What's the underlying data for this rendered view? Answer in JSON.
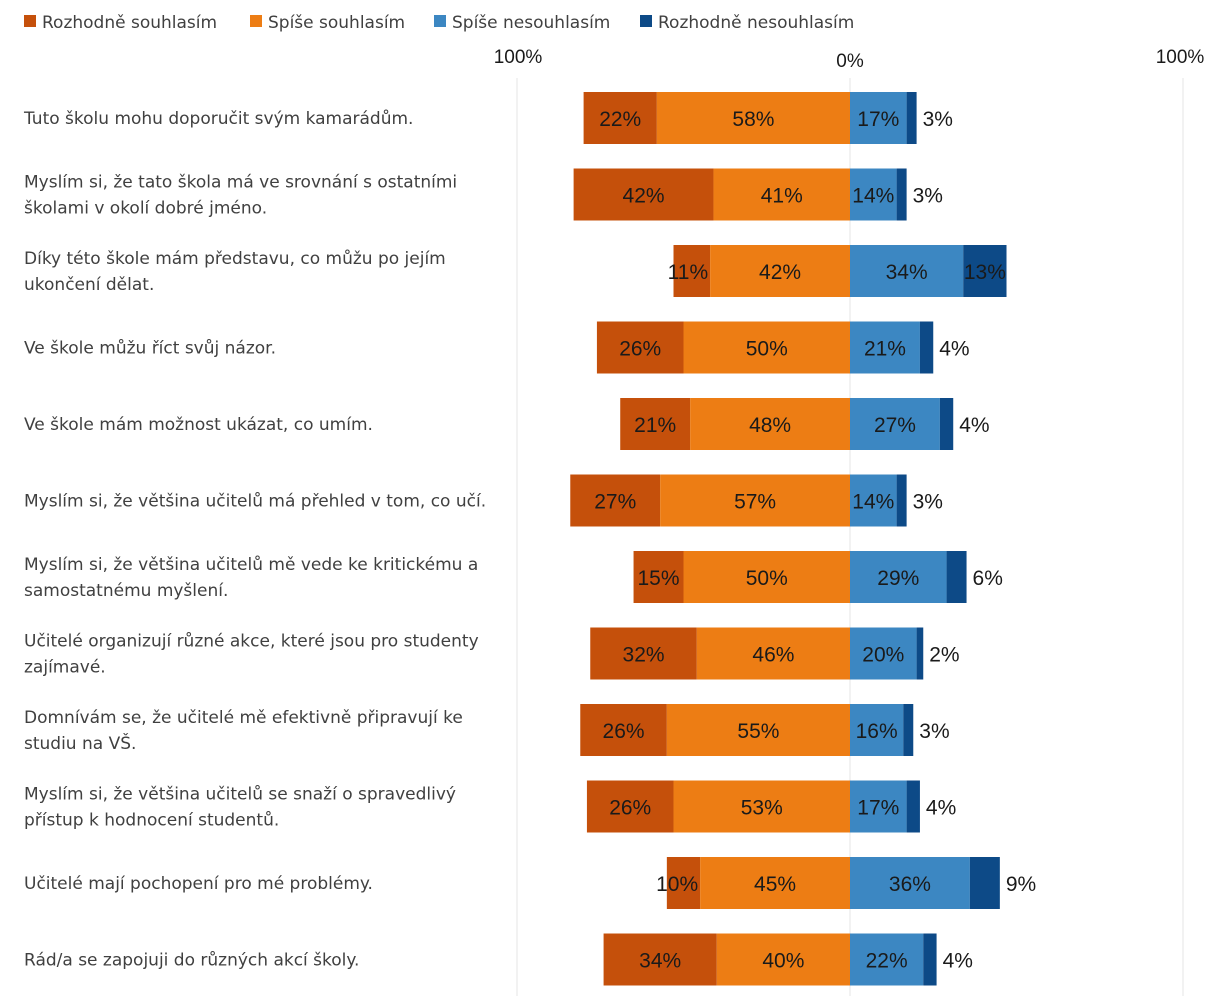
{
  "chart_data": {
    "type": "bar",
    "orientation": "horizontal",
    "stacking": "diverging",
    "legend_position": "top-left",
    "grid": true,
    "xlim": [
      -100,
      100
    ],
    "axis_labels": {
      "left": "100%",
      "center": "0%",
      "right": "100%"
    },
    "categories": [
      [
        "Tuto školu mohu doporučit svým kamarádům."
      ],
      [
        "Myslím si, že tato škola má ve srovnání s ostatními",
        "školami v okolí dobré jméno."
      ],
      [
        "Díky této škole mám představu, co můžu po jejím",
        "ukončení dělat."
      ],
      [
        "Ve škole můžu říct svůj názor."
      ],
      [
        "Ve škole mám možnost ukázat, co umím."
      ],
      [
        "Myslím si, že většina učitelů má přehled v tom, co učí."
      ],
      [
        "Myslím si, že většina učitelů mě vede ke kritickému a",
        "samostatnému myšlení."
      ],
      [
        "Učitelé organizují různé akce, které jsou pro studenty",
        "zajímavé."
      ],
      [
        "Domnívám se, že učitelé mě efektivně připravují ke",
        "studiu na VŠ."
      ],
      [
        "Myslím si, že většina učitelů se snaží o spravedlivý",
        "přístup k hodnocení studentů."
      ],
      [
        "Učitelé mají pochopení pro mé problémy."
      ],
      [
        "Rád/a se zapojuji do různých akcí školy."
      ]
    ],
    "series": [
      {
        "name": "Rozhodně souhlasím",
        "side": "left",
        "color": "#c5500b",
        "values": [
          22,
          42,
          11,
          26,
          21,
          27,
          15,
          32,
          26,
          26,
          10,
          34
        ]
      },
      {
        "name": "Spíše souhlasím",
        "side": "left",
        "color": "#ed7d14",
        "values": [
          58,
          41,
          42,
          50,
          48,
          57,
          50,
          46,
          55,
          53,
          45,
          40
        ]
      },
      {
        "name": "Spíše nesouhlasím",
        "side": "right",
        "color": "#3c87c2",
        "values": [
          17,
          14,
          34,
          21,
          27,
          14,
          29,
          20,
          16,
          17,
          36,
          22
        ]
      },
      {
        "name": "Rozhodně nesouhlasím",
        "side": "right",
        "color": "#0d4a87",
        "values": [
          3,
          3,
          13,
          4,
          4,
          3,
          6,
          2,
          3,
          4,
          9,
          4
        ]
      }
    ]
  }
}
